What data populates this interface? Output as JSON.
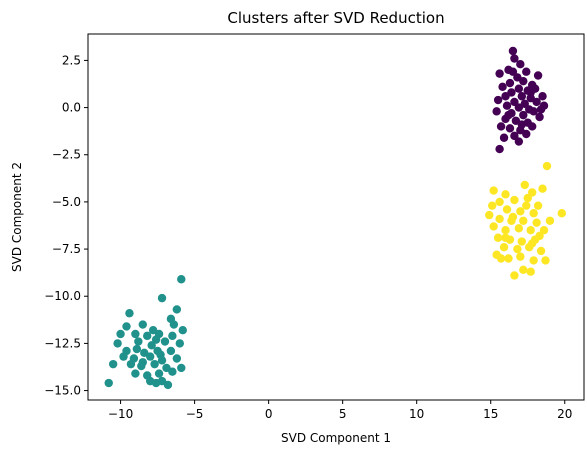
{
  "chart_data": {
    "type": "scatter",
    "title": "Clusters after SVD Reduction",
    "xlabel": "SVD Component 1",
    "ylabel": "SVD Component 2",
    "xlim": [
      -12.2,
      21.3
    ],
    "ylim": [
      -15.5,
      3.9
    ],
    "xticks": [
      -10,
      -5,
      0,
      5,
      10,
      15,
      20
    ],
    "xtick_labels": [
      "−10",
      "−5",
      "0",
      "5",
      "10",
      "15",
      "20"
    ],
    "yticks": [
      2.5,
      0.0,
      -2.5,
      -5.0,
      -7.5,
      -10.0,
      -12.5,
      -15.0
    ],
    "ytick_labels": [
      "2.5",
      "0.0",
      "−2.5",
      "−5.0",
      "−7.5",
      "−10.0",
      "−12.5",
      "−15.0"
    ],
    "grid": false,
    "legend": "none",
    "series": [
      {
        "color": "#440154",
        "points": [
          [
            16.5,
            3.0
          ],
          [
            16.6,
            2.6
          ],
          [
            17.0,
            2.3
          ],
          [
            16.2,
            2.0
          ],
          [
            17.4,
            1.9
          ],
          [
            15.6,
            1.8
          ],
          [
            16.8,
            1.6
          ],
          [
            18.2,
            1.7
          ],
          [
            17.2,
            1.4
          ],
          [
            16.3,
            1.3
          ],
          [
            15.8,
            1.1
          ],
          [
            17.8,
            1.2
          ],
          [
            16.9,
            1.0
          ],
          [
            17.5,
            0.9
          ],
          [
            18.0,
            1.0
          ],
          [
            16.4,
            0.8
          ],
          [
            16.0,
            0.6
          ],
          [
            17.1,
            0.6
          ],
          [
            17.7,
            0.5
          ],
          [
            18.5,
            0.6
          ],
          [
            15.5,
            0.4
          ],
          [
            16.6,
            0.3
          ],
          [
            17.3,
            0.2
          ],
          [
            18.1,
            0.3
          ],
          [
            16.1,
            0.1
          ],
          [
            16.9,
            0.0
          ],
          [
            17.6,
            -0.1
          ],
          [
            18.6,
            0.1
          ],
          [
            15.4,
            -0.2
          ],
          [
            16.4,
            -0.3
          ],
          [
            17.2,
            -0.4
          ],
          [
            17.9,
            -0.2
          ],
          [
            16.0,
            -0.6
          ],
          [
            16.7,
            -0.7
          ],
          [
            17.5,
            -0.8
          ],
          [
            18.3,
            -0.5
          ],
          [
            15.7,
            -1.0
          ],
          [
            16.3,
            -1.1
          ],
          [
            17.0,
            -1.2
          ],
          [
            17.8,
            -1.0
          ],
          [
            16.6,
            -1.5
          ],
          [
            17.4,
            -1.4
          ],
          [
            15.9,
            -1.6
          ],
          [
            16.9,
            -1.8
          ],
          [
            15.6,
            -2.2
          ],
          [
            17.1,
            -0.9
          ],
          [
            16.2,
            -0.4
          ],
          [
            17.7,
            0.8
          ],
          [
            18.4,
            -0.1
          ],
          [
            16.5,
            1.9
          ]
        ]
      },
      {
        "color": "#21918c",
        "points": [
          [
            -5.9,
            -9.1
          ],
          [
            -7.2,
            -10.1
          ],
          [
            -6.2,
            -10.7
          ],
          [
            -6.6,
            -11.2
          ],
          [
            -9.4,
            -10.9
          ],
          [
            -9.6,
            -11.6
          ],
          [
            -8.5,
            -11.5
          ],
          [
            -7.8,
            -11.8
          ],
          [
            -5.8,
            -11.8
          ],
          [
            -10.0,
            -12.0
          ],
          [
            -9.0,
            -12.0
          ],
          [
            -8.2,
            -12.1
          ],
          [
            -7.4,
            -12.0
          ],
          [
            -6.5,
            -12.1
          ],
          [
            -10.2,
            -12.5
          ],
          [
            -8.8,
            -12.4
          ],
          [
            -7.9,
            -12.6
          ],
          [
            -7.0,
            -12.4
          ],
          [
            -6.0,
            -12.5
          ],
          [
            -9.6,
            -12.9
          ],
          [
            -8.4,
            -13.0
          ],
          [
            -7.5,
            -12.9
          ],
          [
            -6.6,
            -12.9
          ],
          [
            -9.1,
            -13.3
          ],
          [
            -8.0,
            -13.2
          ],
          [
            -7.2,
            -13.4
          ],
          [
            -6.2,
            -13.3
          ],
          [
            -10.5,
            -13.6
          ],
          [
            -9.3,
            -13.6
          ],
          [
            -8.6,
            -13.7
          ],
          [
            -7.7,
            -13.6
          ],
          [
            -6.9,
            -13.8
          ],
          [
            -5.9,
            -13.8
          ],
          [
            -9.0,
            -14.1
          ],
          [
            -8.2,
            -14.2
          ],
          [
            -7.4,
            -14.1
          ],
          [
            -6.5,
            -14.0
          ],
          [
            -8.0,
            -14.5
          ],
          [
            -7.2,
            -14.5
          ],
          [
            -6.8,
            -14.7
          ],
          [
            -7.6,
            -14.6
          ],
          [
            -10.8,
            -14.6
          ],
          [
            -8.9,
            -12.8
          ],
          [
            -7.3,
            -13.1
          ],
          [
            -8.5,
            -13.5
          ],
          [
            -9.8,
            -13.2
          ],
          [
            -6.4,
            -11.5
          ],
          [
            -7.6,
            -12.3
          ]
        ]
      },
      {
        "color": "#fde725",
        "points": [
          [
            18.8,
            -3.1
          ],
          [
            17.3,
            -4.1
          ],
          [
            15.2,
            -4.4
          ],
          [
            16.0,
            -4.6
          ],
          [
            17.8,
            -4.5
          ],
          [
            18.5,
            -4.3
          ],
          [
            15.6,
            -5.0
          ],
          [
            16.6,
            -4.9
          ],
          [
            17.5,
            -4.8
          ],
          [
            18.2,
            -5.2
          ],
          [
            16.1,
            -5.4
          ],
          [
            17.0,
            -5.5
          ],
          [
            17.9,
            -5.6
          ],
          [
            14.9,
            -5.7
          ],
          [
            15.6,
            -5.9
          ],
          [
            16.4,
            -6.0
          ],
          [
            17.2,
            -6.0
          ],
          [
            18.1,
            -6.1
          ],
          [
            19.0,
            -6.0
          ],
          [
            19.8,
            -5.6
          ],
          [
            15.2,
            -6.3
          ],
          [
            16.0,
            -6.5
          ],
          [
            16.9,
            -6.4
          ],
          [
            17.7,
            -6.5
          ],
          [
            18.6,
            -6.5
          ],
          [
            15.5,
            -6.9
          ],
          [
            16.3,
            -7.0
          ],
          [
            17.1,
            -7.1
          ],
          [
            18.0,
            -7.0
          ],
          [
            15.9,
            -7.4
          ],
          [
            16.8,
            -7.5
          ],
          [
            17.6,
            -7.4
          ],
          [
            18.4,
            -7.6
          ],
          [
            15.4,
            -7.8
          ],
          [
            16.2,
            -8.0
          ],
          [
            17.0,
            -7.9
          ],
          [
            17.9,
            -8.1
          ],
          [
            15.7,
            -8.0
          ],
          [
            18.7,
            -8.1
          ],
          [
            17.2,
            -8.6
          ],
          [
            17.7,
            -8.7
          ],
          [
            16.6,
            -8.9
          ],
          [
            16.5,
            -5.8
          ],
          [
            17.4,
            -5.2
          ],
          [
            16.0,
            -6.9
          ],
          [
            18.3,
            -6.8
          ],
          [
            15.1,
            -5.2
          ],
          [
            17.8,
            -7.2
          ]
        ]
      }
    ]
  }
}
